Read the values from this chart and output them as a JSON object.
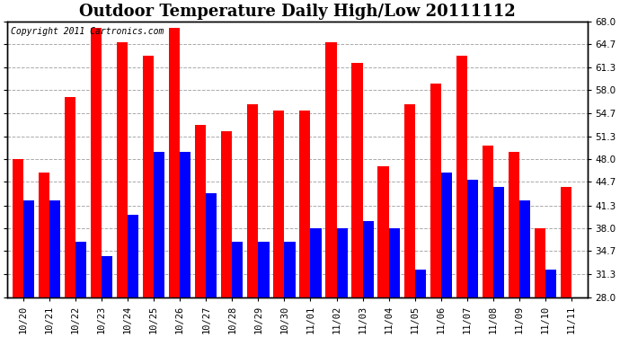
{
  "title": "Outdoor Temperature Daily High/Low 20111112",
  "copyright": "Copyright 2011 Cartronics.com",
  "dates": [
    "10/20",
    "10/21",
    "10/22",
    "10/23",
    "10/24",
    "10/25",
    "10/26",
    "10/27",
    "10/28",
    "10/29",
    "10/30",
    "11/01",
    "11/02",
    "11/03",
    "11/04",
    "11/05",
    "11/06",
    "11/07",
    "11/08",
    "11/09",
    "11/10",
    "11/11"
  ],
  "highs": [
    48,
    46,
    57,
    67,
    65,
    63,
    67,
    53,
    52,
    56,
    55,
    55,
    65,
    62,
    47,
    56,
    59,
    63,
    50,
    49,
    38,
    44
  ],
  "lows": [
    42,
    42,
    36,
    34,
    40,
    49,
    49,
    43,
    36,
    36,
    36,
    38,
    38,
    39,
    38,
    32,
    46,
    45,
    44,
    42,
    32,
    28
  ],
  "high_color": "#ff0000",
  "low_color": "#0000ff",
  "bg_color": "#ffffff",
  "yticks": [
    28.0,
    31.3,
    34.7,
    38.0,
    41.3,
    44.7,
    48.0,
    51.3,
    54.7,
    58.0,
    61.3,
    64.7,
    68.0
  ],
  "ymin": 28.0,
  "ymax": 68.0,
  "title_fontsize": 13,
  "copyright_fontsize": 7,
  "tick_fontsize": 7.5
}
